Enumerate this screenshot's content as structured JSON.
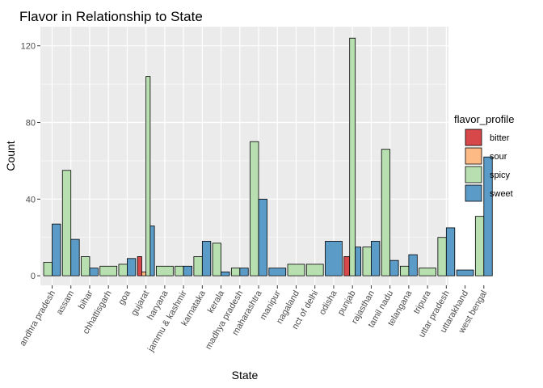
{
  "chart_data": {
    "type": "bar",
    "title": "Flavor in Relationship to State",
    "xlabel": "State",
    "ylabel": "Count",
    "ylim": [
      -5,
      130
    ],
    "yticks": [
      0,
      40,
      80,
      120
    ],
    "grid": true,
    "legend": {
      "title": "flavor_profile",
      "placement": "right"
    },
    "colors": {
      "bitter": "#d7484b",
      "sour": "#fdba84",
      "spicy": "#b8dfb0",
      "sweet": "#5a9bc8",
      "panel": "#ebebeb",
      "grid": "#ffffff"
    },
    "categories": [
      "andhra pradesh",
      "assam",
      "bihar",
      "chhattisgarh",
      "goa",
      "gujarat",
      "haryana",
      "jammu & kashmir",
      "karnataka",
      "kerala",
      "madhya pradesh",
      "maharashtra",
      "manipur",
      "nagaland",
      "nct of delhi",
      "odisha",
      "punjab",
      "rajasthan",
      "tamil nadu",
      "telangana",
      "tripura",
      "uttar pradesh",
      "uttarakhand",
      "west bengal"
    ],
    "series": [
      {
        "name": "bitter",
        "values": [
          0,
          0,
          0,
          0,
          0,
          10,
          0,
          0,
          0,
          0,
          0,
          0,
          0,
          0,
          0,
          0,
          10,
          0,
          0,
          0,
          0,
          0,
          0,
          0
        ]
      },
      {
        "name": "sour",
        "values": [
          0,
          0,
          0,
          0,
          0,
          2,
          0,
          0,
          0,
          0,
          0,
          0,
          0,
          0,
          0,
          0,
          0,
          0,
          0,
          0,
          0,
          0,
          0,
          0
        ]
      },
      {
        "name": "spicy",
        "values": [
          7,
          55,
          10,
          5,
          6,
          104,
          5,
          5,
          10,
          17,
          4,
          70,
          0,
          6,
          6,
          0,
          124,
          15,
          66,
          5,
          4,
          20,
          0,
          31
        ]
      },
      {
        "name": "sweet",
        "values": [
          27,
          19,
          4,
          0,
          9,
          26,
          0,
          5,
          18,
          2,
          4,
          40,
          4,
          0,
          0,
          18,
          15,
          18,
          8,
          11,
          0,
          25,
          3,
          62
        ]
      }
    ]
  }
}
